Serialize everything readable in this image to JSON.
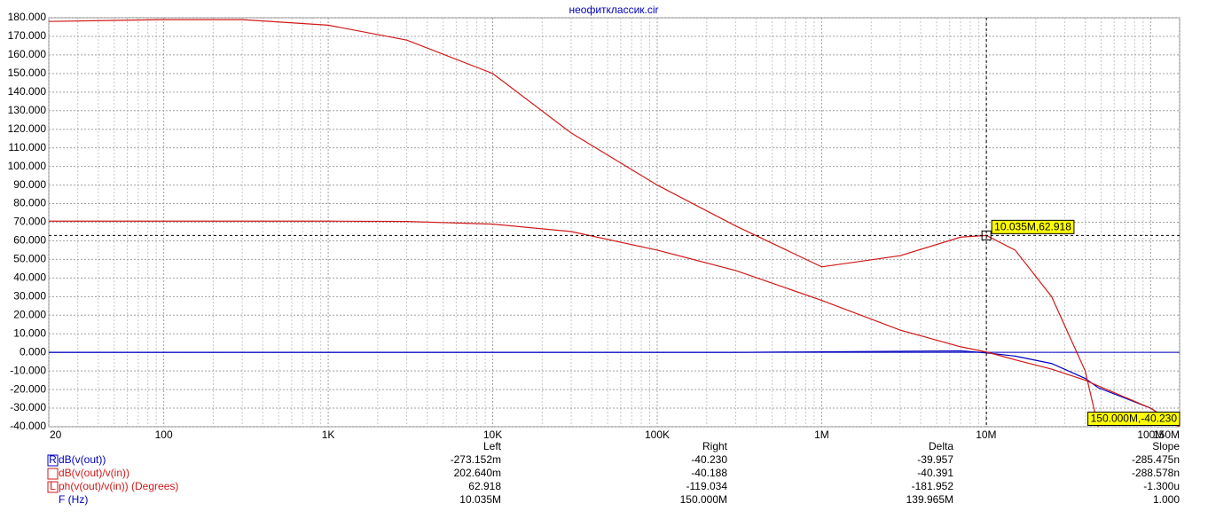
{
  "chart_data": {
    "type": "line",
    "title": "неофитклассик.cir",
    "xscale": "log",
    "grid": true,
    "xlim": [
      20,
      150000000
    ],
    "ylim": [
      -40,
      180
    ],
    "xticks": [
      20,
      100,
      {
        "value": 1000,
        "label": "1K"
      },
      {
        "value": 10000,
        "label": "10K"
      },
      {
        "value": 100000,
        "label": "100K"
      },
      {
        "value": 1000000,
        "label": "1M"
      },
      {
        "value": 10000000,
        "label": "10M"
      },
      {
        "value": 100000000,
        "label": "100M"
      },
      {
        "value": 150000000,
        "label": "150M"
      }
    ],
    "yticks": [
      {
        "value": -40,
        "label": "-40.000"
      },
      {
        "value": -30,
        "label": "-30.000"
      },
      {
        "value": -20,
        "label": "-20.000"
      },
      {
        "value": -10,
        "label": "-10.000"
      },
      {
        "value": 0,
        "label": "0.000"
      },
      {
        "value": 10,
        "label": "10.000"
      },
      {
        "value": 20,
        "label": "20.000"
      },
      {
        "value": 30,
        "label": "30.000"
      },
      {
        "value": 40,
        "label": "40.000"
      },
      {
        "value": 50,
        "label": "50.000"
      },
      {
        "value": 60,
        "label": "60.000"
      },
      {
        "value": 70,
        "label": "70.000"
      },
      {
        "value": 80,
        "label": "80.000"
      },
      {
        "value": 90,
        "label": "90.000"
      },
      {
        "value": 100,
        "label": "100.000"
      },
      {
        "value": 110,
        "label": "110.000"
      },
      {
        "value": 120,
        "label": "120.000"
      },
      {
        "value": 130,
        "label": "130.000"
      },
      {
        "value": 140,
        "label": "140.000"
      },
      {
        "value": 150,
        "label": "150.000"
      },
      {
        "value": 160,
        "label": "160.000"
      },
      {
        "value": 170,
        "label": "170.000"
      },
      {
        "value": 180,
        "label": "180.000"
      }
    ],
    "x": [
      20,
      100,
      300,
      1000,
      3000,
      10000,
      30000,
      100000,
      300000,
      1000000,
      3000000,
      7000000,
      10035000,
      15000000,
      25000000,
      40000000,
      48000000,
      100000000,
      150000000
    ],
    "series": [
      {
        "name": "dB(v(out))",
        "color": "#0000c0",
        "values": [
          0,
          0,
          0,
          0,
          0,
          0,
          0,
          0,
          0,
          0.3,
          0.6,
          0.8,
          -0.273,
          -2,
          -6,
          -14,
          -19,
          -30,
          -40.23
        ]
      },
      {
        "name": "dB(v(out)/v(in))",
        "color": "#d01818",
        "values": [
          70.6,
          70.6,
          70.6,
          70.6,
          70.4,
          69,
          65,
          55,
          44,
          28,
          12,
          3,
          0.2,
          -4,
          -9,
          -15,
          -18,
          -30,
          -40.188
        ]
      },
      {
        "name": "ph(v(out)/v(in)) (Degrees)",
        "color": "#d01818",
        "values": [
          178,
          179,
          179,
          176,
          168,
          150,
          118,
          90,
          68,
          46,
          52,
          62,
          62.918,
          55,
          30,
          -10,
          -40,
          null,
          null
        ]
      }
    ],
    "annotations": [
      {
        "text": "10.035M,62.918",
        "x": 10035000,
        "y": 62.918
      },
      {
        "text": "150.000M,-40.230",
        "x": 150000000,
        "y": -40.23
      }
    ]
  },
  "cursor_table": {
    "columns": [
      "Left",
      "Right",
      "Delta",
      "Slope"
    ],
    "rows": [
      {
        "marker": "R",
        "values": [
          "-273.152m",
          "-40.230",
          "-39.957",
          "-285.475n"
        ]
      },
      {
        "values": [
          "202.640m",
          "-40.188",
          "-40.391",
          "-288.578n"
        ]
      },
      {
        "marker": "L",
        "values": [
          "62.918",
          "-119.034",
          "-181.952",
          "-1.300u"
        ]
      },
      {
        "label": "F (Hz)",
        "values": [
          "10.035M",
          "150.000M",
          "139.965M",
          "1.000"
        ]
      }
    ]
  }
}
